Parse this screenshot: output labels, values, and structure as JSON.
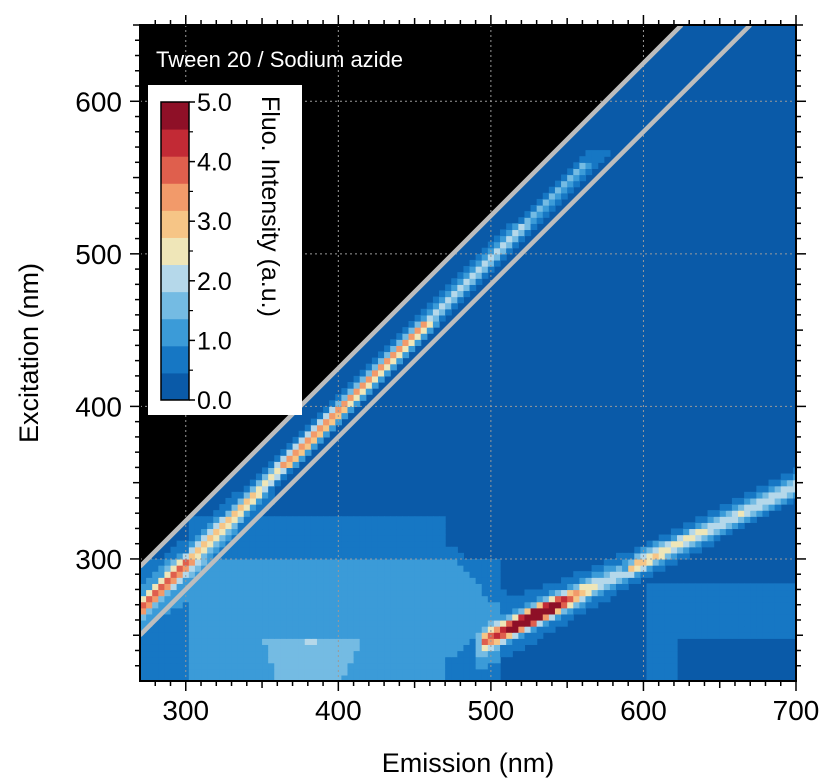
{
  "chart_data": {
    "type": "heatmap",
    "title": "Tween 20 / Sodium azide",
    "xlabel": "Emission (nm)",
    "ylabel": "Excitation (nm)",
    "xlim": [
      270,
      700
    ],
    "ylim": [
      220,
      650
    ],
    "xticks": [
      300,
      400,
      500,
      600,
      700
    ],
    "yticks": [
      300,
      400,
      500,
      600
    ],
    "x_tick_labels": [
      "300",
      "400",
      "500",
      "600",
      "700"
    ],
    "y_tick_labels": [
      "300",
      "400",
      "500",
      "600"
    ],
    "grid": true,
    "colorbar": {
      "title": "Fluo. Intensity (a.u.)",
      "min": 0.0,
      "max": 5.0,
      "tick_labels": [
        "5.0",
        "4.0",
        "3.0",
        "2.0",
        "1.0",
        "0.0"
      ],
      "tick_values": [
        5.0,
        4.0,
        3.0,
        2.0,
        1.0,
        0.0
      ],
      "levels": [
        0.0,
        0.5,
        1.0,
        1.5,
        2.0,
        2.5,
        3.0,
        3.5,
        4.0,
        4.5,
        5.0
      ],
      "colors": [
        "#0a5aa8",
        "#1677c4",
        "#3b9bd8",
        "#74bbe3",
        "#b5d8ea",
        "#efe6b8",
        "#f6c586",
        "#f29a6a",
        "#df5f4d",
        "#c22a35",
        "#8e1027"
      ]
    },
    "masked_region": "excitation >= emission (upper-left, black)",
    "scatter_band_lines": [
      {
        "name": "first-order Rayleigh boundary",
        "offset_nm": 25
      },
      {
        "name": "first-order Rayleigh boundary",
        "offset_nm": -20
      }
    ],
    "features": [
      {
        "name": "first-order scatter ridge",
        "ex_range": [
          270,
          560
        ],
        "peak_intensity": 3.2
      },
      {
        "name": "second-order scatter ridge",
        "ex_range": [
          240,
          355
        ],
        "peak_intensity": 5.0,
        "peak_at": {
          "x": 525,
          "y": 262
        }
      },
      {
        "name": "broad low-intensity region",
        "ex_range": [
          220,
          350
        ],
        "em_range": [
          300,
          500
        ],
        "peak_intensity": 1.5
      }
    ]
  },
  "colors": {
    "masked": "#000000",
    "scatter_line": "#bdbdbd",
    "grid": "#9a9a9a",
    "background": "#0a5aa8"
  }
}
